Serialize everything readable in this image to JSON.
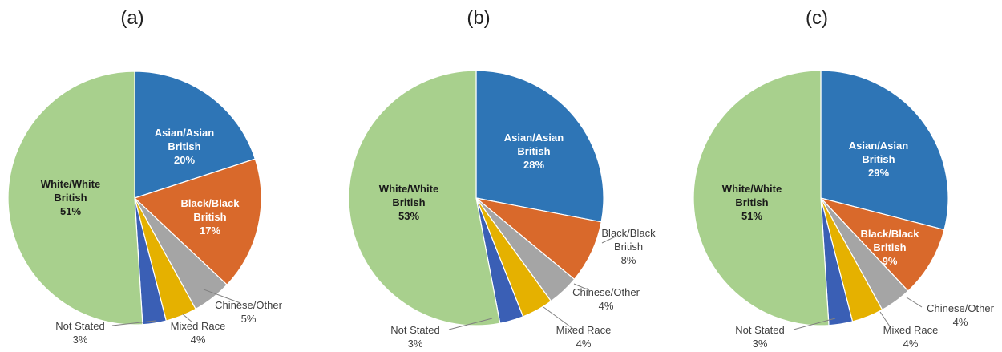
{
  "chart_data": [
    {
      "type": "pie",
      "title": "(a)",
      "categories": [
        "Asian/Asian British",
        "Black/Black British",
        "Chinese/Other",
        "Mixed Race",
        "Not Stated",
        "White/White British"
      ],
      "values": [
        20,
        17,
        5,
        4,
        3,
        51
      ],
      "value_labels": [
        "20%",
        "17%",
        "5%",
        "4%",
        "3%",
        "51%"
      ],
      "colors": [
        "#2E75B6",
        "#D9692B",
        "#A5A5A5",
        "#E5B100",
        "#3A5FB5",
        "#A8D08D"
      ]
    },
    {
      "type": "pie",
      "title": "(b)",
      "categories": [
        "Asian/Asian British",
        "Black/Black British",
        "Chinese/Other",
        "Mixed Race",
        "Not Stated",
        "White/White British"
      ],
      "values": [
        28,
        8,
        4,
        4,
        3,
        53
      ],
      "value_labels": [
        "28%",
        "8%",
        "4%",
        "4%",
        "3%",
        "53%"
      ],
      "colors": [
        "#2E75B6",
        "#D9692B",
        "#A5A5A5",
        "#E5B100",
        "#3A5FB5",
        "#A8D08D"
      ]
    },
    {
      "type": "pie",
      "title": "(c)",
      "categories": [
        "Asian/Asian British",
        "Black/Black British",
        "Chinese/Other",
        "Mixed Race",
        "Not Stated",
        "White/White British"
      ],
      "values": [
        29,
        9,
        4,
        4,
        3,
        51
      ],
      "value_labels": [
        "29%",
        "9%",
        "4%",
        "4%",
        "3%",
        "51%"
      ],
      "colors": [
        "#2E75B6",
        "#D9692B",
        "#A5A5A5",
        "#E5B100",
        "#3A5FB5",
        "#A8D08D"
      ]
    }
  ]
}
